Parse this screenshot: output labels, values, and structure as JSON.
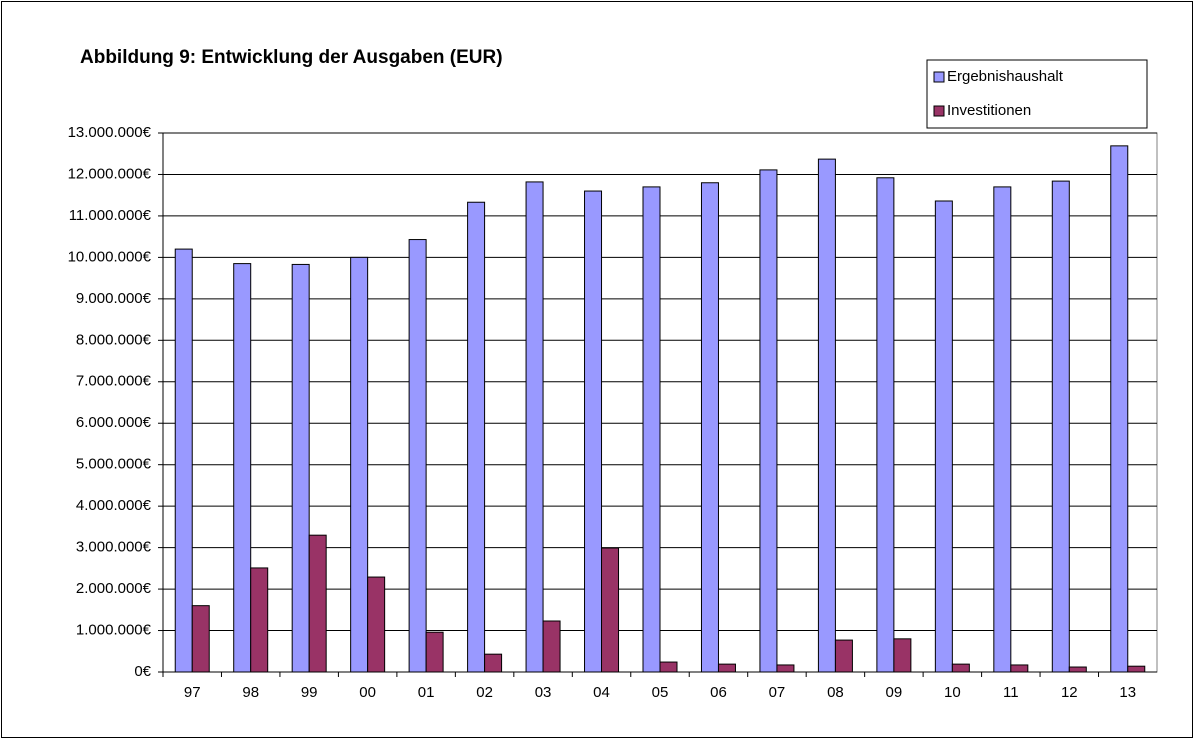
{
  "chart_data": {
    "type": "bar",
    "title": "Abbildung 9:  Entwicklung der Ausgaben (EUR)",
    "categories": [
      "97",
      "98",
      "99",
      "00",
      "01",
      "02",
      "03",
      "04",
      "05",
      "06",
      "07",
      "08",
      "09",
      "10",
      "11",
      "12",
      "13"
    ],
    "series": [
      {
        "name": "Ergebnishaushalt",
        "color": "#9999ff",
        "values": [
          10200000,
          9850000,
          9830000,
          10000000,
          10430000,
          11330000,
          11820000,
          11600000,
          11700000,
          11800000,
          12110000,
          12370000,
          11920000,
          11360000,
          11700000,
          11840000,
          12690000
        ]
      },
      {
        "name": "Investitionen",
        "color": "#993366",
        "values": [
          1600000,
          2510000,
          3300000,
          2290000,
          960000,
          430000,
          1230000,
          2990000,
          240000,
          190000,
          170000,
          770000,
          800000,
          190000,
          170000,
          120000,
          140000
        ]
      }
    ],
    "ylim": [
      0,
      13000000
    ],
    "yticks": [
      {
        "value": 0,
        "label": "0€"
      },
      {
        "value": 1000000,
        "label": "1.000.000€"
      },
      {
        "value": 2000000,
        "label": "2.000.000€"
      },
      {
        "value": 3000000,
        "label": "3.000.000€"
      },
      {
        "value": 4000000,
        "label": "4.000.000€"
      },
      {
        "value": 5000000,
        "label": "5.000.000€"
      },
      {
        "value": 6000000,
        "label": "6.000.000€"
      },
      {
        "value": 7000000,
        "label": "7.000.000€"
      },
      {
        "value": 8000000,
        "label": "8.000.000€"
      },
      {
        "value": 9000000,
        "label": "9.000.000€"
      },
      {
        "value": 10000000,
        "label": "10.000.000€"
      },
      {
        "value": 11000000,
        "label": "11.000.000€"
      },
      {
        "value": 12000000,
        "label": "12.000.000€"
      },
      {
        "value": 13000000,
        "label": "13.000.000€"
      }
    ],
    "grid": true,
    "legend": "top-right"
  }
}
